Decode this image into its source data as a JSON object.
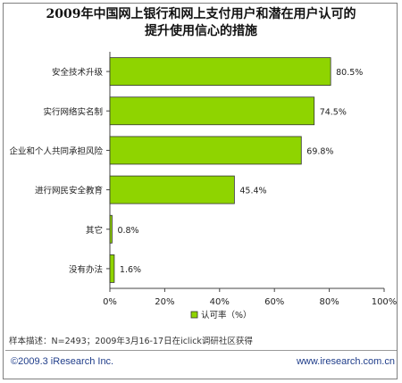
{
  "title_line1": "2009年中国网上银行和网上支付用户和潜在用户认可的",
  "title_line2": "提升使用信心的措施",
  "chart_data": {
    "type": "bar",
    "orientation": "horizontal",
    "categories": [
      "安全技术升级",
      "实行网络实名制",
      "企业和个人共同承担风险",
      "进行网民安全教育",
      "其它",
      "没有办法"
    ],
    "series": [
      {
        "name": "认可率（%）",
        "values": [
          80.5,
          74.5,
          69.8,
          45.4,
          0.8,
          1.6
        ]
      }
    ],
    "value_labels": [
      "80.5%",
      "74.5%",
      "69.8%",
      "45.4%",
      "0.8%",
      "1.6%"
    ],
    "xlim": [
      0,
      100
    ],
    "xticks": [
      0,
      20,
      40,
      60,
      80,
      100
    ],
    "xtick_labels": [
      "0%",
      "20%",
      "40%",
      "60%",
      "80%",
      "100%"
    ],
    "grid": false,
    "legend_position": "bottom",
    "bar_color": "#8fd400",
    "bar_stroke": "#333333"
  },
  "note": "样本描述：N=2493；2009年3月16-17日在iclick调研社区获得",
  "footer_left": "©2009.3 iResearch Inc.",
  "footer_right": "www.iresearch.com.cn"
}
